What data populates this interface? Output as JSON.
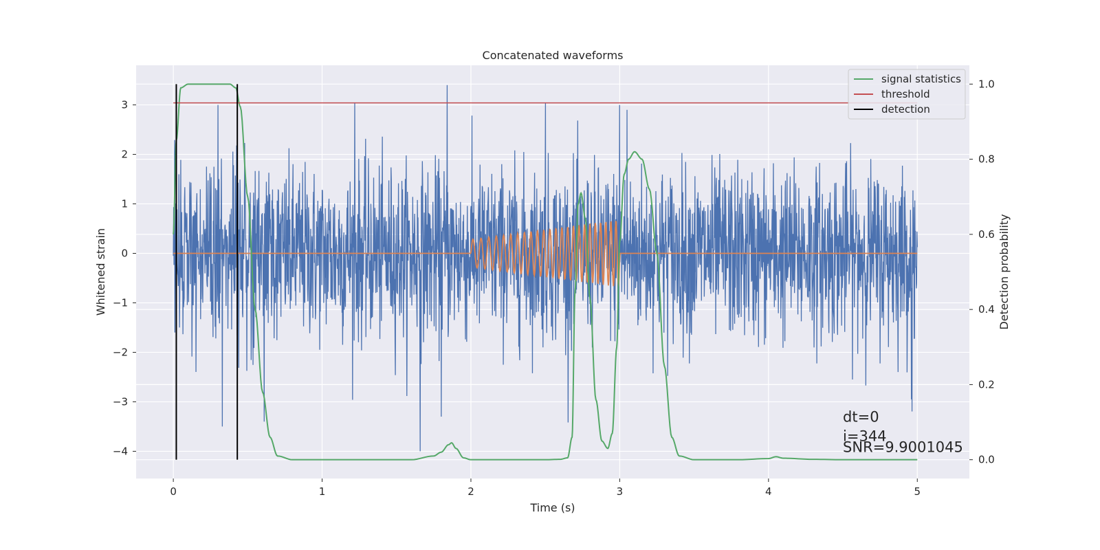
{
  "chart_data": {
    "type": "line",
    "title": "Concatenated waveforms",
    "xlabel": "Time (s)",
    "ylabel": "Whitened strain",
    "y2label": "Detection probability",
    "xlim": [
      -0.25,
      5.35
    ],
    "ylim": [
      -4.55,
      3.8
    ],
    "y2lim": [
      -0.05,
      1.05
    ],
    "x_ticks": [
      0,
      1,
      2,
      3,
      4,
      5
    ],
    "y_ticks": [
      -4,
      -3,
      -2,
      -1,
      0,
      1,
      2,
      3
    ],
    "y2_ticks": [
      0.0,
      0.2,
      0.4,
      0.6,
      0.8,
      1.0
    ],
    "x_tick_labels": [
      "0",
      "1",
      "2",
      "3",
      "4",
      "5"
    ],
    "y_tick_labels": [
      "−4",
      "−3",
      "−2",
      "−1",
      "0",
      "1",
      "2",
      "3"
    ],
    "y2_tick_labels": [
      "0.0",
      "0.2",
      "0.4",
      "0.6",
      "0.8",
      "1.0"
    ],
    "grid": true,
    "legend_position": "top-right",
    "legend": [
      "signal statistics",
      "threshold",
      "detection"
    ],
    "series": [
      {
        "name": "",
        "role": "whitened strain noise",
        "axis": "left",
        "color": "#4c72b0",
        "x_range": [
          0,
          5
        ],
        "typical_range": [
          -1.5,
          1.5
        ],
        "notable_peaks": [
          {
            "x": 1.84,
            "y": 3.4
          },
          {
            "x": 1.22,
            "y": 3.05
          },
          {
            "x": 0.3,
            "y": 3.0
          },
          {
            "x": 2.5,
            "y": 3.05
          },
          {
            "x": 3.05,
            "y": 2.9
          },
          {
            "x": 3.0,
            "y": 3.0
          }
        ],
        "notable_troughs": [
          {
            "x": 1.66,
            "y": -4.0
          },
          {
            "x": 0.33,
            "y": -3.5
          },
          {
            "x": 1.8,
            "y": -3.3
          },
          {
            "x": 0.61,
            "y": -3.4
          },
          {
            "x": 4.96,
            "y": -2.95
          }
        ]
      },
      {
        "name": "",
        "role": "injected chirp waveform",
        "axis": "left",
        "color": "#dd8452",
        "flat_before": 2.0,
        "chirp_start": 2.0,
        "chirp_end": 3.0,
        "amplitude_start": 0.28,
        "amplitude_end": 0.68,
        "frequency_start_hz": 18,
        "frequency_end_hz": 30,
        "flat_value": 0.0
      },
      {
        "name": "signal statistics",
        "axis": "right",
        "color": "#55a868",
        "x": [
          0.0,
          0.02,
          0.05,
          0.1,
          0.2,
          0.3,
          0.38,
          0.42,
          0.45,
          0.5,
          0.55,
          0.6,
          0.65,
          0.7,
          0.8,
          1.0,
          1.3,
          1.6,
          1.75,
          1.8,
          1.85,
          1.87,
          1.9,
          1.95,
          2.0,
          2.3,
          2.5,
          2.6,
          2.65,
          2.68,
          2.7,
          2.72,
          2.74,
          2.77,
          2.8,
          2.84,
          2.88,
          2.92,
          2.95,
          2.98,
          3.0,
          3.03,
          3.06,
          3.1,
          3.15,
          3.2,
          3.25,
          3.3,
          3.35,
          3.4,
          3.5,
          3.8,
          4.0,
          4.05,
          4.1,
          4.3,
          4.5,
          5.0
        ],
        "y": [
          0.6,
          0.85,
          0.99,
          1.0,
          1.0,
          1.0,
          1.0,
          0.99,
          0.94,
          0.7,
          0.4,
          0.18,
          0.06,
          0.01,
          0.0,
          0.0,
          0.0,
          0.0,
          0.01,
          0.02,
          0.04,
          0.045,
          0.03,
          0.005,
          0.0,
          0.0,
          0.0,
          0.001,
          0.005,
          0.06,
          0.45,
          0.68,
          0.71,
          0.64,
          0.43,
          0.16,
          0.05,
          0.03,
          0.07,
          0.3,
          0.58,
          0.76,
          0.8,
          0.82,
          0.8,
          0.72,
          0.55,
          0.25,
          0.06,
          0.01,
          0.0,
          0.0,
          0.003,
          0.008,
          0.004,
          0.001,
          0.0,
          0.0
        ]
      },
      {
        "name": "threshold",
        "axis": "right",
        "color": "#c44e52",
        "x": [
          0.0,
          5.0
        ],
        "y": [
          0.95,
          0.95
        ]
      },
      {
        "name": "detection",
        "axis": "right",
        "color": "#000000",
        "vlines_x": [
          0.02,
          0.43
        ],
        "vline_y_range": [
          0.0,
          1.0
        ]
      }
    ],
    "annotations": [
      "dt=0",
      "i=344",
      "SNR=9.9001045"
    ],
    "annotation_anchor": {
      "x": 4.5,
      "y2": 0.0
    }
  }
}
